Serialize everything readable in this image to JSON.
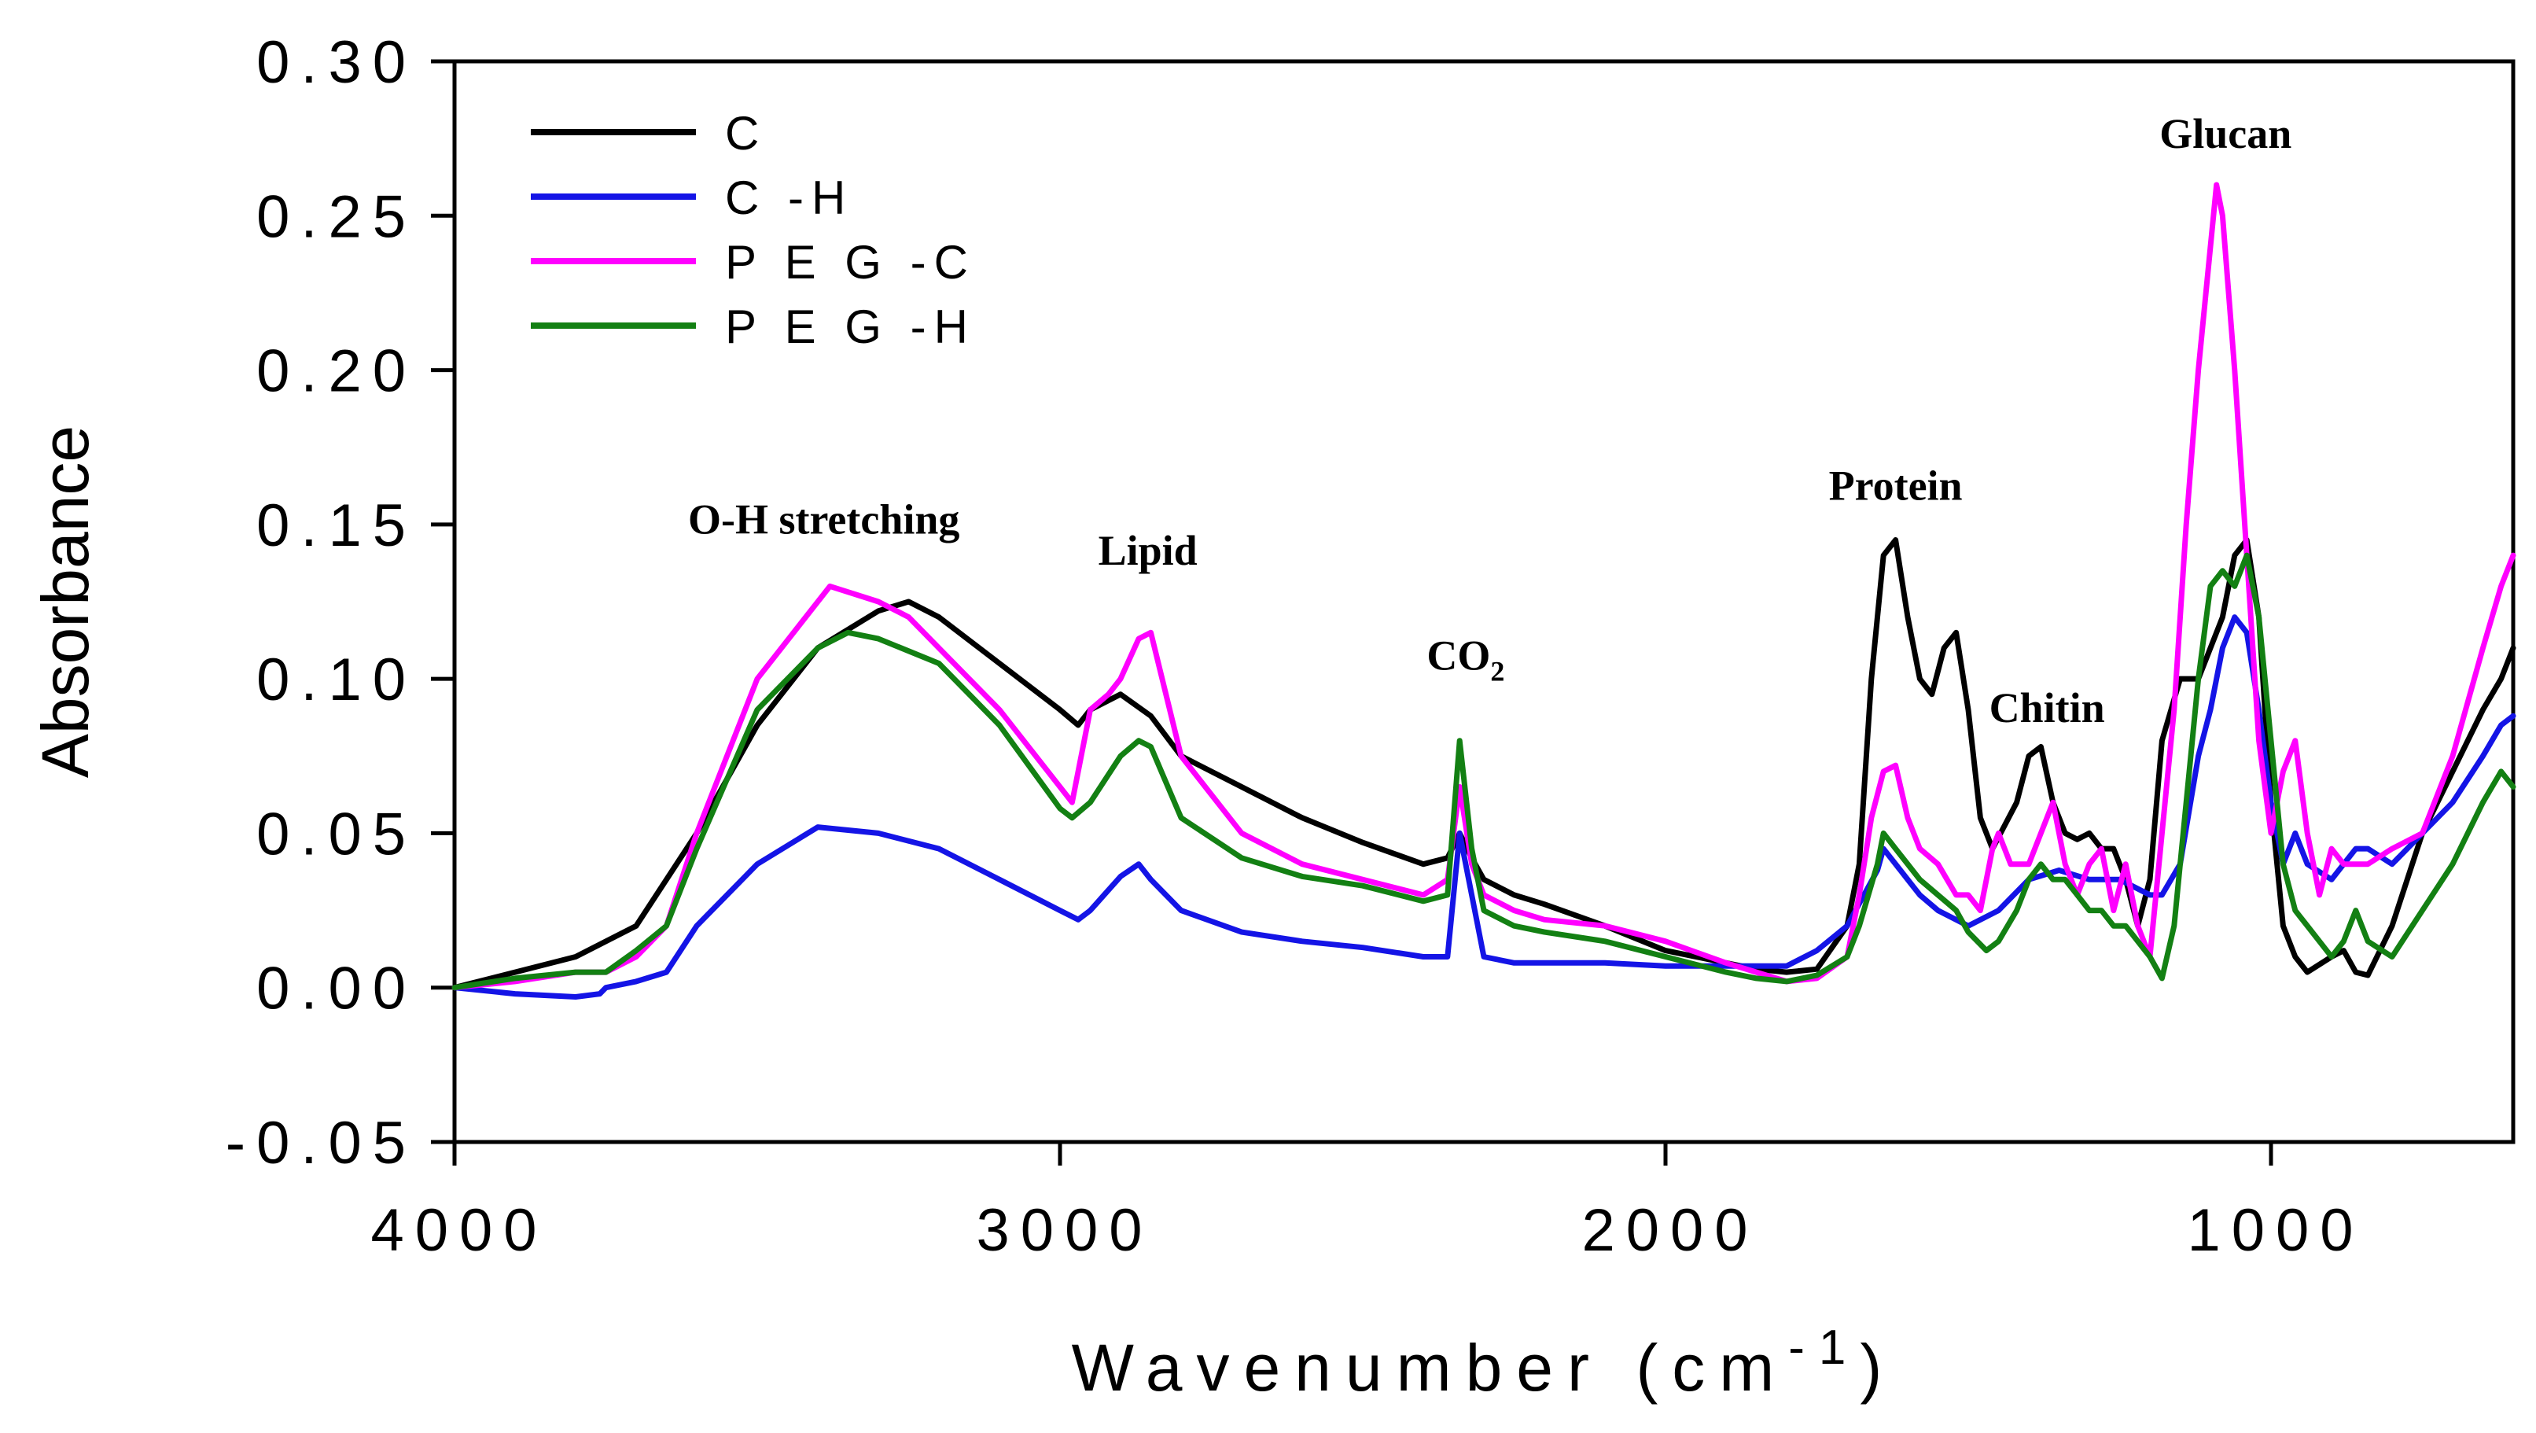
{
  "chart_data": {
    "type": "line",
    "title": "",
    "xlabel": "Wavenumber (cm",
    "xlabel_sup": "-1",
    "xlabel_close": ")",
    "ylabel": "Absorbance",
    "xlim": [
      4000,
      600
    ],
    "ylim": [
      -0.05,
      0.3
    ],
    "x_ticks": [
      4000,
      3000,
      2000,
      1000
    ],
    "x_tick_labels": [
      "4000",
      "3000",
      "2000",
      "1000"
    ],
    "y_ticks": [
      -0.05,
      0.0,
      0.05,
      0.1,
      0.15,
      0.2,
      0.25,
      0.3
    ],
    "y_tick_labels": [
      "-0.05",
      "0.00",
      "0.05",
      "0.10",
      "0.15",
      "0.20",
      "0.25",
      "0.30"
    ],
    "grid": false,
    "legend_position": "top-left",
    "series": [
      {
        "name": "C",
        "color": "#000000",
        "x": [
          4000,
          3900,
          3800,
          3700,
          3600,
          3500,
          3400,
          3300,
          3250,
          3200,
          3100,
          3000,
          2970,
          2950,
          2900,
          2850,
          2800,
          2700,
          2600,
          2500,
          2400,
          2360,
          2340,
          2320,
          2300,
          2250,
          2200,
          2100,
          2000,
          1900,
          1850,
          1800,
          1750,
          1700,
          1680,
          1660,
          1640,
          1620,
          1600,
          1580,
          1560,
          1540,
          1520,
          1500,
          1480,
          1460,
          1420,
          1400,
          1380,
          1360,
          1340,
          1320,
          1300,
          1280,
          1260,
          1240,
          1220,
          1200,
          1180,
          1150,
          1120,
          1100,
          1080,
          1060,
          1040,
          1020,
          1000,
          980,
          960,
          940,
          900,
          880,
          860,
          840,
          800,
          750,
          700,
          650,
          620,
          600
        ],
        "y": [
          0.0,
          0.005,
          0.01,
          0.02,
          0.05,
          0.085,
          0.11,
          0.122,
          0.125,
          0.12,
          0.105,
          0.09,
          0.085,
          0.09,
          0.095,
          0.088,
          0.075,
          0.065,
          0.055,
          0.047,
          0.04,
          0.042,
          0.05,
          0.042,
          0.035,
          0.03,
          0.027,
          0.02,
          0.012,
          0.008,
          0.006,
          0.005,
          0.006,
          0.02,
          0.04,
          0.1,
          0.14,
          0.145,
          0.12,
          0.1,
          0.095,
          0.11,
          0.115,
          0.09,
          0.055,
          0.045,
          0.06,
          0.075,
          0.078,
          0.06,
          0.05,
          0.048,
          0.05,
          0.045,
          0.045,
          0.035,
          0.02,
          0.035,
          0.08,
          0.1,
          0.1,
          0.11,
          0.12,
          0.14,
          0.145,
          0.12,
          0.06,
          0.02,
          0.01,
          0.005,
          0.01,
          0.012,
          0.005,
          0.004,
          0.02,
          0.05,
          0.07,
          0.09,
          0.1,
          0.11
        ]
      },
      {
        "name": "C -H",
        "color": "#1414e6",
        "x": [
          4000,
          3900,
          3800,
          3760,
          3750,
          3700,
          3650,
          3600,
          3500,
          3400,
          3300,
          3200,
          3100,
          3000,
          2970,
          2950,
          2900,
          2870,
          2850,
          2800,
          2700,
          2600,
          2500,
          2400,
          2360,
          2340,
          2320,
          2300,
          2250,
          2200,
          2100,
          2000,
          1900,
          1850,
          1800,
          1750,
          1700,
          1650,
          1640,
          1620,
          1600,
          1580,
          1550,
          1500,
          1450,
          1400,
          1350,
          1300,
          1250,
          1200,
          1180,
          1150,
          1120,
          1100,
          1080,
          1060,
          1040,
          1020,
          1000,
          980,
          960,
          940,
          900,
          880,
          860,
          840,
          800,
          750,
          700,
          650,
          620,
          600
        ],
        "y": [
          0.0,
          -0.002,
          -0.003,
          -0.002,
          0.0,
          0.002,
          0.005,
          0.02,
          0.04,
          0.052,
          0.05,
          0.045,
          0.035,
          0.025,
          0.022,
          0.025,
          0.036,
          0.04,
          0.035,
          0.025,
          0.018,
          0.015,
          0.013,
          0.01,
          0.01,
          0.05,
          0.03,
          0.01,
          0.008,
          0.008,
          0.008,
          0.007,
          0.007,
          0.007,
          0.007,
          0.012,
          0.02,
          0.038,
          0.045,
          0.04,
          0.035,
          0.03,
          0.025,
          0.02,
          0.025,
          0.035,
          0.038,
          0.035,
          0.035,
          0.03,
          0.03,
          0.04,
          0.075,
          0.09,
          0.11,
          0.12,
          0.115,
          0.09,
          0.06,
          0.04,
          0.05,
          0.04,
          0.035,
          0.04,
          0.045,
          0.045,
          0.04,
          0.05,
          0.06,
          0.075,
          0.085,
          0.088
        ]
      },
      {
        "name": "P E G -C",
        "color": "#ff00ff",
        "x": [
          4000,
          3900,
          3800,
          3750,
          3700,
          3650,
          3600,
          3500,
          3400,
          3380,
          3300,
          3250,
          3200,
          3100,
          3000,
          2980,
          2950,
          2920,
          2900,
          2870,
          2850,
          2800,
          2700,
          2600,
          2500,
          2400,
          2360,
          2340,
          2320,
          2300,
          2250,
          2200,
          2100,
          2000,
          1900,
          1850,
          1800,
          1750,
          1700,
          1680,
          1660,
          1640,
          1620,
          1600,
          1580,
          1550,
          1520,
          1500,
          1480,
          1460,
          1450,
          1430,
          1400,
          1380,
          1360,
          1340,
          1320,
          1300,
          1280,
          1260,
          1240,
          1220,
          1200,
          1180,
          1160,
          1140,
          1120,
          1100,
          1090,
          1080,
          1060,
          1040,
          1020,
          1000,
          980,
          960,
          940,
          920,
          900,
          880,
          860,
          840,
          800,
          750,
          700,
          650,
          620,
          600
        ],
        "y": [
          0.0,
          0.002,
          0.005,
          0.005,
          0.01,
          0.02,
          0.05,
          0.1,
          0.125,
          0.13,
          0.125,
          0.12,
          0.11,
          0.09,
          0.065,
          0.06,
          0.09,
          0.095,
          0.1,
          0.113,
          0.115,
          0.075,
          0.05,
          0.04,
          0.035,
          0.03,
          0.035,
          0.065,
          0.04,
          0.03,
          0.025,
          0.022,
          0.02,
          0.015,
          0.008,
          0.005,
          0.002,
          0.003,
          0.01,
          0.03,
          0.055,
          0.07,
          0.072,
          0.055,
          0.045,
          0.04,
          0.03,
          0.03,
          0.025,
          0.045,
          0.05,
          0.04,
          0.04,
          0.05,
          0.06,
          0.04,
          0.03,
          0.04,
          0.045,
          0.025,
          0.04,
          0.02,
          0.01,
          0.05,
          0.09,
          0.15,
          0.2,
          0.24,
          0.26,
          0.25,
          0.2,
          0.14,
          0.08,
          0.05,
          0.07,
          0.08,
          0.05,
          0.03,
          0.045,
          0.04,
          0.04,
          0.04,
          0.045,
          0.05,
          0.075,
          0.11,
          0.13,
          0.14
        ]
      },
      {
        "name": "P E G -H",
        "color": "#138013",
        "x": [
          4000,
          3900,
          3800,
          3750,
          3700,
          3650,
          3600,
          3500,
          3400,
          3350,
          3300,
          3200,
          3100,
          3000,
          2980,
          2950,
          2900,
          2870,
          2850,
          2800,
          2700,
          2600,
          2500,
          2400,
          2360,
          2340,
          2320,
          2300,
          2250,
          2200,
          2100,
          2000,
          1900,
          1850,
          1800,
          1750,
          1700,
          1680,
          1650,
          1640,
          1620,
          1600,
          1580,
          1550,
          1520,
          1500,
          1470,
          1450,
          1420,
          1400,
          1380,
          1360,
          1340,
          1320,
          1300,
          1280,
          1260,
          1240,
          1220,
          1200,
          1180,
          1160,
          1140,
          1120,
          1100,
          1080,
          1060,
          1040,
          1020,
          1000,
          980,
          960,
          940,
          900,
          880,
          860,
          840,
          800,
          750,
          700,
          650,
          620,
          600
        ],
        "y": [
          0.0,
          0.003,
          0.005,
          0.005,
          0.012,
          0.02,
          0.045,
          0.09,
          0.11,
          0.115,
          0.113,
          0.105,
          0.085,
          0.058,
          0.055,
          0.06,
          0.075,
          0.08,
          0.078,
          0.055,
          0.042,
          0.036,
          0.033,
          0.028,
          0.03,
          0.08,
          0.045,
          0.025,
          0.02,
          0.018,
          0.015,
          0.01,
          0.005,
          0.003,
          0.002,
          0.004,
          0.01,
          0.02,
          0.04,
          0.05,
          0.045,
          0.04,
          0.035,
          0.03,
          0.025,
          0.018,
          0.012,
          0.015,
          0.025,
          0.035,
          0.04,
          0.035,
          0.035,
          0.03,
          0.025,
          0.025,
          0.02,
          0.02,
          0.015,
          0.01,
          0.003,
          0.02,
          0.06,
          0.1,
          0.13,
          0.135,
          0.13,
          0.14,
          0.12,
          0.08,
          0.04,
          0.025,
          0.02,
          0.01,
          0.015,
          0.025,
          0.015,
          0.01,
          0.025,
          0.04,
          0.06,
          0.07,
          0.065
        ]
      }
    ],
    "annotations": [
      {
        "text": "O-H stretching",
        "x": 3390,
        "y": 0.147
      },
      {
        "text": "Lipid",
        "x": 2855,
        "y": 0.137
      },
      {
        "text": "CO",
        "sub": "2",
        "x": 2330,
        "y": 0.103
      },
      {
        "text": "Protein",
        "x": 1620,
        "y": 0.158
      },
      {
        "text": "Chitin",
        "x": 1370,
        "y": 0.086
      },
      {
        "text": "Glucan",
        "x": 1075,
        "y": 0.272
      }
    ]
  }
}
